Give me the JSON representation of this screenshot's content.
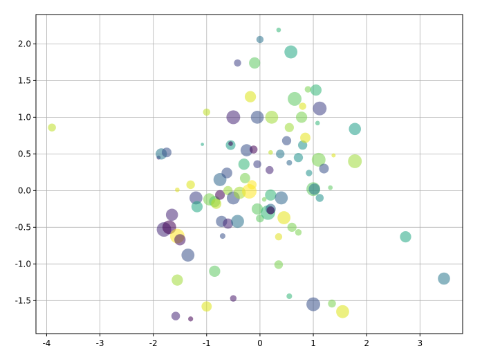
{
  "chart_data": {
    "type": "scatter",
    "title": "",
    "xlabel": "",
    "ylabel": "",
    "xlim": [
      -4.2,
      3.8
    ],
    "ylim": [
      -1.95,
      2.4
    ],
    "grid": true,
    "legend": "none",
    "colormap": "viridis",
    "alpha": 0.55,
    "xticks": [
      -4,
      -3,
      -2,
      -1,
      0,
      1,
      2,
      3
    ],
    "xtick_labels": [
      "-4",
      "-3",
      "-2",
      "-1",
      "0",
      "1",
      "2",
      "3"
    ],
    "yticks": [
      -1.5,
      -1.0,
      -0.5,
      0.0,
      0.5,
      1.0,
      1.5,
      2.0
    ],
    "ytick_labels": [
      "-1.5",
      "-1.0",
      "-0.5",
      "0.0",
      "0.5",
      "1.0",
      "1.5",
      "2.0"
    ],
    "points": [
      {
        "x": -3.9,
        "y": 0.86,
        "size": 30,
        "color": "#bddf26"
      },
      {
        "x": -1.9,
        "y": 0.45,
        "size": 8,
        "color": "#482878"
      },
      {
        "x": -1.85,
        "y": 0.5,
        "size": 60,
        "color": "#2a788e"
      },
      {
        "x": -1.75,
        "y": 0.52,
        "size": 45,
        "color": "#3b528b"
      },
      {
        "x": -1.55,
        "y": 0.01,
        "size": 10,
        "color": "#e0e020"
      },
      {
        "x": -1.3,
        "y": 0.08,
        "size": 35,
        "color": "#dde318"
      },
      {
        "x": -1.2,
        "y": -0.1,
        "size": 80,
        "color": "#414487"
      },
      {
        "x": -1.18,
        "y": -0.22,
        "size": 60,
        "color": "#22a884"
      },
      {
        "x": -1.8,
        "y": -0.53,
        "size": 100,
        "color": "#472c7a"
      },
      {
        "x": -1.7,
        "y": -0.5,
        "size": 90,
        "color": "#440154"
      },
      {
        "x": -1.65,
        "y": -0.33,
        "size": 70,
        "color": "#482878"
      },
      {
        "x": -1.55,
        "y": -0.62,
        "size": 100,
        "color": "#fde725"
      },
      {
        "x": -1.5,
        "y": -0.67,
        "size": 60,
        "color": "#471365"
      },
      {
        "x": -1.35,
        "y": -0.88,
        "size": 80,
        "color": "#3b528b"
      },
      {
        "x": -1.55,
        "y": -1.22,
        "size": 60,
        "color": "#a0da39"
      },
      {
        "x": -1.58,
        "y": -1.71,
        "size": 35,
        "color": "#482878"
      },
      {
        "x": -1.3,
        "y": -1.75,
        "size": 12,
        "color": "#440154"
      },
      {
        "x": -1.0,
        "y": 1.07,
        "size": 25,
        "color": "#bddf26"
      },
      {
        "x": -1.08,
        "y": 0.63,
        "size": 5,
        "color": "#22a884"
      },
      {
        "x": -0.95,
        "y": -0.12,
        "size": 70,
        "color": "#7ad151"
      },
      {
        "x": -0.85,
        "y": -0.15,
        "size": 60,
        "color": "#5ec962"
      },
      {
        "x": -0.82,
        "y": -0.18,
        "size": 50,
        "color": "#bddf26"
      },
      {
        "x": -0.75,
        "y": 0.15,
        "size": 80,
        "color": "#31688e"
      },
      {
        "x": -0.7,
        "y": -0.62,
        "size": 15,
        "color": "#3b528b"
      },
      {
        "x": -0.75,
        "y": -0.06,
        "size": 45,
        "color": "#440154"
      },
      {
        "x": -0.72,
        "y": -0.42,
        "size": 60,
        "color": "#3b528b"
      },
      {
        "x": -0.6,
        "y": -0.45,
        "size": 50,
        "color": "#482878"
      },
      {
        "x": -0.62,
        "y": 0.24,
        "size": 55,
        "color": "#3b528b"
      },
      {
        "x": -0.6,
        "y": 0.0,
        "size": 40,
        "color": "#9fda3a"
      },
      {
        "x": -0.5,
        "y": -0.1,
        "size": 80,
        "color": "#3b528b"
      },
      {
        "x": -0.42,
        "y": -0.42,
        "size": 80,
        "color": "#2c728e"
      },
      {
        "x": -0.55,
        "y": 0.62,
        "size": 45,
        "color": "#1f9e89"
      },
      {
        "x": -0.55,
        "y": 0.64,
        "size": 10,
        "color": "#440154"
      },
      {
        "x": -0.5,
        "y": 1.0,
        "size": 90,
        "color": "#482878"
      },
      {
        "x": -0.5,
        "y": -1.47,
        "size": 20,
        "color": "#481a6c"
      },
      {
        "x": -0.85,
        "y": -1.1,
        "size": 60,
        "color": "#5ec962"
      },
      {
        "x": -1.0,
        "y": -1.58,
        "size": 50,
        "color": "#dde318"
      },
      {
        "x": -0.42,
        "y": 1.74,
        "size": 25,
        "color": "#414487"
      },
      {
        "x": -0.38,
        "y": -0.03,
        "size": 70,
        "color": "#a5db36"
      },
      {
        "x": -0.3,
        "y": 0.36,
        "size": 60,
        "color": "#35b779"
      },
      {
        "x": -0.28,
        "y": 0.17,
        "size": 50,
        "color": "#7ad151"
      },
      {
        "x": -0.25,
        "y": 0.55,
        "size": 70,
        "color": "#3b528b"
      },
      {
        "x": -0.2,
        "y": -0.01,
        "size": 100,
        "color": "#fde725"
      },
      {
        "x": -0.18,
        "y": 1.28,
        "size": 60,
        "color": "#dde318"
      },
      {
        "x": -0.12,
        "y": 0.56,
        "size": 30,
        "color": "#440154"
      },
      {
        "x": -0.1,
        "y": 1.74,
        "size": 60,
        "color": "#5ec962"
      },
      {
        "x": -0.05,
        "y": 0.36,
        "size": 30,
        "color": "#414487"
      },
      {
        "x": -0.05,
        "y": 1.0,
        "size": 80,
        "color": "#3b528b"
      },
      {
        "x": -0.15,
        "y": 0.08,
        "size": 40,
        "color": "#fde725"
      },
      {
        "x": -0.05,
        "y": -0.25,
        "size": 60,
        "color": "#5ec962"
      },
      {
        "x": 0.0,
        "y": -0.38,
        "size": 30,
        "color": "#5ec962"
      },
      {
        "x": 0.0,
        "y": 2.06,
        "size": 25,
        "color": "#2c728e"
      },
      {
        "x": 0.08,
        "y": -0.12,
        "size": 10,
        "color": "#75d054"
      },
      {
        "x": 0.15,
        "y": -0.3,
        "size": 100,
        "color": "#35b779"
      },
      {
        "x": 0.2,
        "y": -0.25,
        "size": 50,
        "color": "#31688e"
      },
      {
        "x": 0.2,
        "y": -0.27,
        "size": 30,
        "color": "#440154"
      },
      {
        "x": 0.18,
        "y": 0.28,
        "size": 30,
        "color": "#482878"
      },
      {
        "x": 0.2,
        "y": -0.06,
        "size": 60,
        "color": "#35b779"
      },
      {
        "x": 0.22,
        "y": 1.0,
        "size": 80,
        "color": "#a0da39"
      },
      {
        "x": 0.2,
        "y": 0.52,
        "size": 10,
        "color": "#bddf26"
      },
      {
        "x": 0.35,
        "y": 2.19,
        "size": 10,
        "color": "#35b779"
      },
      {
        "x": 0.38,
        "y": 0.5,
        "size": 35,
        "color": "#2a788e"
      },
      {
        "x": 0.4,
        "y": -0.1,
        "size": 80,
        "color": "#31688e"
      },
      {
        "x": 0.45,
        "y": -0.37,
        "size": 80,
        "color": "#e5e419"
      },
      {
        "x": 0.35,
        "y": -0.63,
        "size": 25,
        "color": "#e0e020"
      },
      {
        "x": 0.35,
        "y": -1.01,
        "size": 35,
        "color": "#7ad151"
      },
      {
        "x": 0.5,
        "y": 0.68,
        "size": 40,
        "color": "#3b528b"
      },
      {
        "x": 0.55,
        "y": 0.38,
        "size": 15,
        "color": "#31688e"
      },
      {
        "x": 0.55,
        "y": 0.86,
        "size": 40,
        "color": "#9fda3a"
      },
      {
        "x": 0.58,
        "y": 1.89,
        "size": 80,
        "color": "#22a884"
      },
      {
        "x": 0.6,
        "y": -0.5,
        "size": 40,
        "color": "#7ad151"
      },
      {
        "x": 0.55,
        "y": -1.44,
        "size": 15,
        "color": "#35b779"
      },
      {
        "x": 0.65,
        "y": 1.25,
        "size": 90,
        "color": "#5ec962"
      },
      {
        "x": 0.72,
        "y": 0.45,
        "size": 40,
        "color": "#21918c"
      },
      {
        "x": 0.72,
        "y": -0.57,
        "size": 20,
        "color": "#7ad151"
      },
      {
        "x": 0.78,
        "y": 1.0,
        "size": 60,
        "color": "#7ad151"
      },
      {
        "x": 0.8,
        "y": 1.15,
        "size": 25,
        "color": "#dde318"
      },
      {
        "x": 0.8,
        "y": 0.62,
        "size": 40,
        "color": "#21918c"
      },
      {
        "x": 0.85,
        "y": 0.72,
        "size": 50,
        "color": "#e5e419"
      },
      {
        "x": 0.9,
        "y": 1.38,
        "size": 20,
        "color": "#7ad151"
      },
      {
        "x": 0.92,
        "y": 0.24,
        "size": 20,
        "color": "#21918c"
      },
      {
        "x": 1.0,
        "y": 0.02,
        "size": 90,
        "color": "#5ec962"
      },
      {
        "x": 1.02,
        "y": 0.02,
        "size": 60,
        "color": "#2a788e"
      },
      {
        "x": 1.0,
        "y": -1.55,
        "size": 90,
        "color": "#3b528b"
      },
      {
        "x": 1.05,
        "y": 1.37,
        "size": 60,
        "color": "#35b779"
      },
      {
        "x": 1.1,
        "y": 0.42,
        "size": 90,
        "color": "#7ad151"
      },
      {
        "x": 1.12,
        "y": -0.1,
        "size": 30,
        "color": "#21918c"
      },
      {
        "x": 1.12,
        "y": 1.12,
        "size": 90,
        "color": "#414487"
      },
      {
        "x": 1.08,
        "y": 0.92,
        "size": 10,
        "color": "#35b779"
      },
      {
        "x": 1.2,
        "y": 0.3,
        "size": 45,
        "color": "#3b528b"
      },
      {
        "x": 1.32,
        "y": 0.04,
        "size": 10,
        "color": "#5ec962"
      },
      {
        "x": 1.38,
        "y": 0.48,
        "size": 8,
        "color": "#dde318"
      },
      {
        "x": 1.35,
        "y": -1.54,
        "size": 30,
        "color": "#7ad151"
      },
      {
        "x": 1.55,
        "y": -1.65,
        "size": 80,
        "color": "#dde318"
      },
      {
        "x": 1.78,
        "y": 0.4,
        "size": 90,
        "color": "#9fda3a"
      },
      {
        "x": 1.78,
        "y": 0.84,
        "size": 70,
        "color": "#1f9e89"
      },
      {
        "x": 2.73,
        "y": -0.63,
        "size": 60,
        "color": "#22a884"
      },
      {
        "x": 3.45,
        "y": -1.2,
        "size": 70,
        "color": "#2a788e"
      }
    ]
  }
}
